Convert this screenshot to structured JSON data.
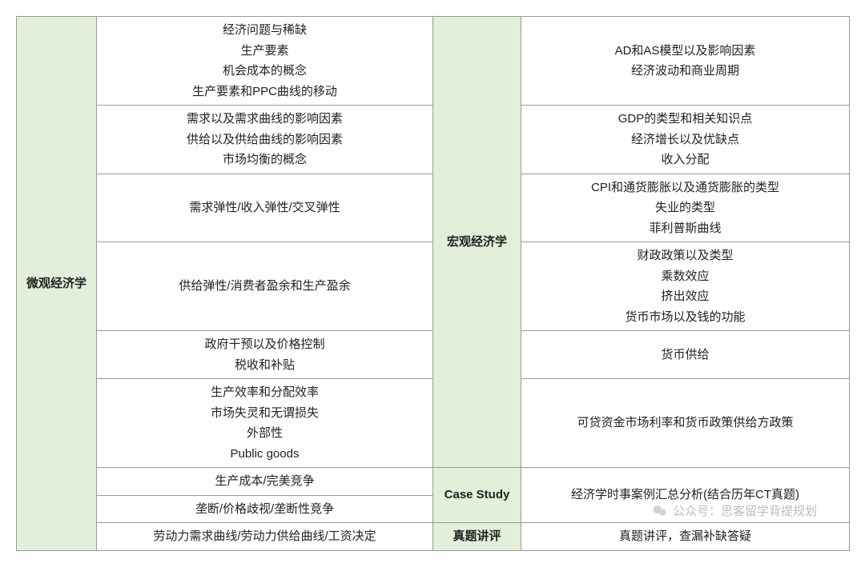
{
  "table": {
    "columns": {
      "left_header_width": 100,
      "left_content_width": 420,
      "right_header_width": 110,
      "right_content_width": 410
    },
    "colors": {
      "header_bg": "#e2efda",
      "border": "#999999",
      "text": "#222222",
      "background": "#ffffff"
    },
    "left_header": "微观经济学",
    "left_rows": [
      "经济问题与稀缺\n生产要素\n机会成本的概念\n生产要素和PPC曲线的移动",
      "需求以及需求曲线的影响因素\n供给以及供给曲线的影响因素\n市场均衡的概念",
      "需求弹性/收入弹性/交叉弹性",
      "供给弹性/消费者盈余和生产盈余",
      "政府干预以及价格控制\n税收和补贴",
      "生产效率和分配效率\n市场失灵和无谓损失\n外部性\nPublic goods",
      "生产成本/完美竞争",
      "垄断/价格歧视/垄断性竞争",
      "劳动力需求曲线/劳动力供给曲线/工资决定"
    ],
    "right_sections": [
      {
        "header": "宏观经济学",
        "rows": [
          "AD和AS模型以及影响因素\n经济波动和商业周期",
          "GDP的类型和相关知识点\n经济增长以及优缺点\n收入分配",
          "CPI和通货膨胀以及通货膨胀的类型\n失业的类型\n菲利普斯曲线",
          "财政政策以及类型\n乘数效应\n挤出效应\n货币市场以及钱的功能",
          "货币供给",
          "可贷资金市场利率和货币政策供给方政策"
        ]
      },
      {
        "header": "Case Study",
        "rows": [
          "经济学时事案例汇总分析(结合历年CT真题)"
        ]
      },
      {
        "header": "真题讲评",
        "rows": [
          "真题讲评，查漏补缺答疑"
        ]
      }
    ]
  },
  "watermark": {
    "label": "公众号：思客留学背提规划"
  }
}
